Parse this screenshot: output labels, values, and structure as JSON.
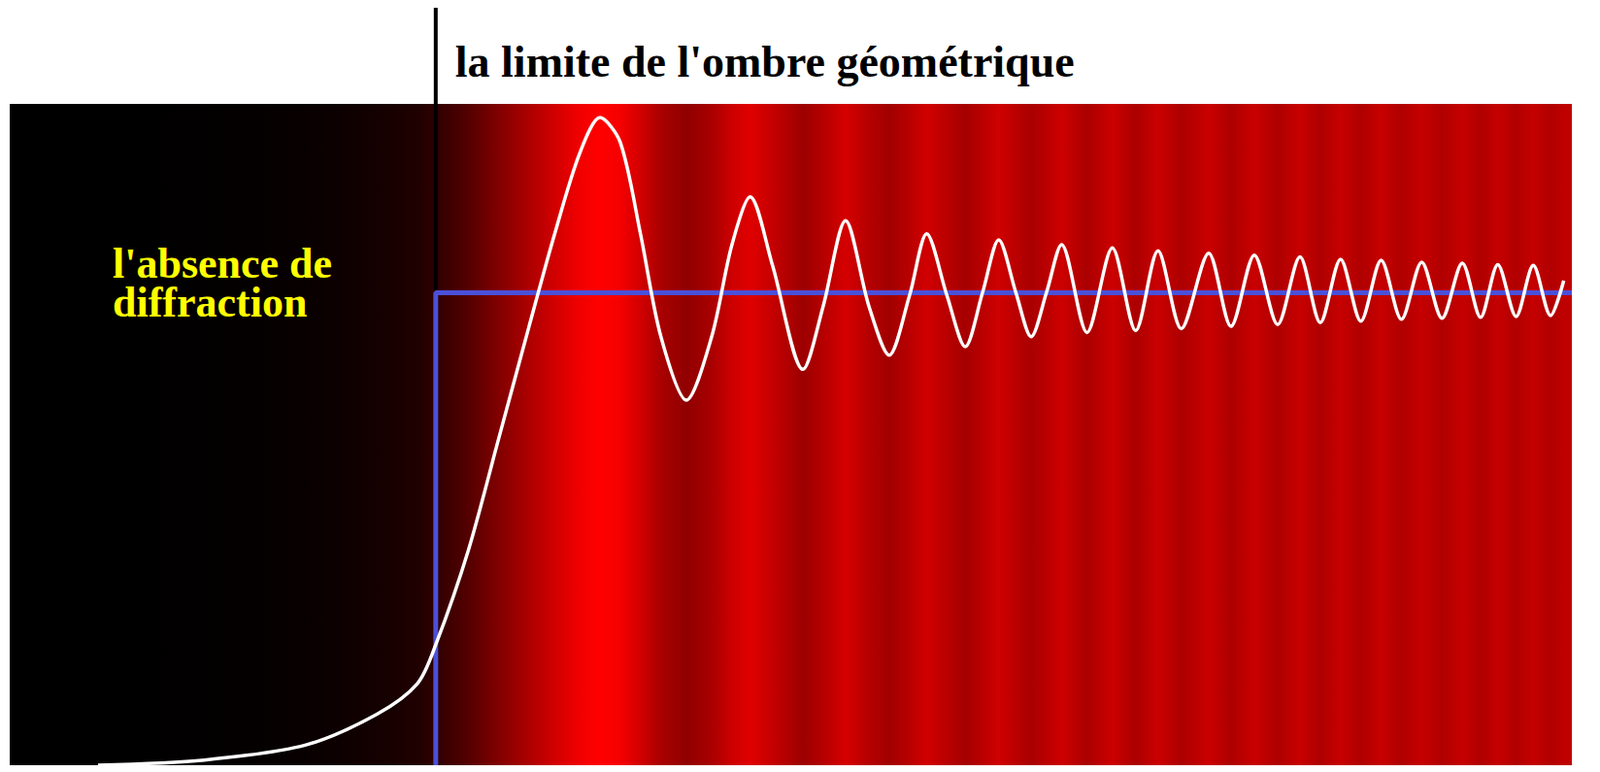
{
  "chart_data": {
    "type": "line",
    "xlim": [
      -4.2,
      11.2
    ],
    "ylim": [
      0,
      1.4
    ],
    "tick_labels": false,
    "grid": false,
    "series": [
      {
        "color": "#ffffff",
        "x": [
          -3.33,
          -2.28,
          -1.28,
          -0.58,
          -0.18,
          0,
          0.32,
          0.62,
          0.92,
          1.17,
          1.42,
          1.62,
          1.82,
          2.02,
          2.22,
          2.47,
          2.72,
          2.92,
          3.1,
          3.32,
          3.62,
          3.82,
          4.04,
          4.27,
          4.47,
          4.67,
          4.84,
          5.04,
          5.22,
          5.39,
          5.55,
          5.72,
          5.87,
          6.02,
          6.17,
          6.42,
          6.67,
          6.9,
          7.12,
          7.35,
          7.62,
          7.84,
          8.07,
          8.3,
          8.52,
          8.72,
          8.92,
          9.12,
          9.32,
          9.52,
          9.72,
          9.92,
          10.12,
          10.3,
          10.47,
          10.65,
          10.82,
          10.99,
          11.12
        ],
        "values": [
          0,
          0.011,
          0.043,
          0.108,
          0.173,
          0.255,
          0.454,
          0.691,
          0.929,
          1.123,
          1.296,
          1.371,
          1.318,
          1.123,
          0.907,
          0.773,
          0.907,
          1.102,
          1.203,
          1.058,
          0.838,
          0.972,
          1.153,
          0.972,
          0.868,
          0.994,
          1.125,
          0.994,
          0.886,
          1.0,
          1.112,
          1.0,
          0.907,
          1.0,
          1.102,
          0.916,
          1.095,
          0.92,
          1.089,
          0.924,
          1.084,
          0.929,
          1.08,
          0.933,
          1.076,
          0.937,
          1.071,
          0.94,
          1.069,
          0.944,
          1.065,
          0.946,
          1.063,
          0.948,
          1.06,
          0.95,
          1.058,
          0.952,
          1.026
        ]
      },
      {
        "name": "l'absence de diffraction",
        "color": "#4a50d8",
        "x": [
          0,
          0,
          11.2
        ],
        "values": [
          0,
          1,
          1
        ]
      }
    ],
    "annotations": [
      {
        "text": "la limite de l'ombre géométrique",
        "x": 0,
        "y": 1
      }
    ]
  }
}
